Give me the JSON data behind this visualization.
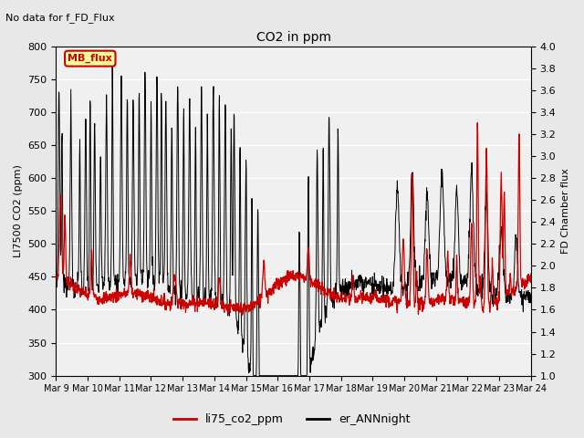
{
  "title": "CO2 in ppm",
  "top_left_text": "No data for f_FD_Flux",
  "ylabel_left": "LI7500 CO2 (ppm)",
  "ylabel_right": "FD Chamber flux",
  "ylim_left": [
    300,
    800
  ],
  "ylim_right": [
    1.0,
    4.0
  ],
  "yticks_left": [
    300,
    350,
    400,
    450,
    500,
    550,
    600,
    650,
    700,
    750,
    800
  ],
  "yticks_right": [
    1.0,
    1.2,
    1.4,
    1.6,
    1.8,
    2.0,
    2.2,
    2.4,
    2.6,
    2.8,
    3.0,
    3.2,
    3.4,
    3.6,
    3.8,
    4.0
  ],
  "xtick_labels": [
    "Mar 9",
    "Mar 10",
    "Mar 11",
    "Mar 12",
    "Mar 13",
    "Mar 14",
    "Mar 15",
    "Mar 16",
    "Mar 17",
    "Mar 18",
    "Mar 19",
    "Mar 20",
    "Mar 21",
    "Mar 22",
    "Mar 23",
    "Mar 24"
  ],
  "legend_label1": "li75_co2_ppm",
  "legend_label2": "er_ANNnight",
  "legend_color1": "#cc0000",
  "legend_color2": "#000000",
  "mb_flux_label": "MB_flux",
  "mb_flux_color": "#cc0000",
  "mb_flux_bg": "#ffff99",
  "background_color": "#e8e8e8",
  "plot_bg_color": "#f0f0f0",
  "grid_color": "#ffffff",
  "line_color_red": "#cc0000",
  "line_color_black": "#000000",
  "n_days": 16,
  "pts_per_day": 96
}
